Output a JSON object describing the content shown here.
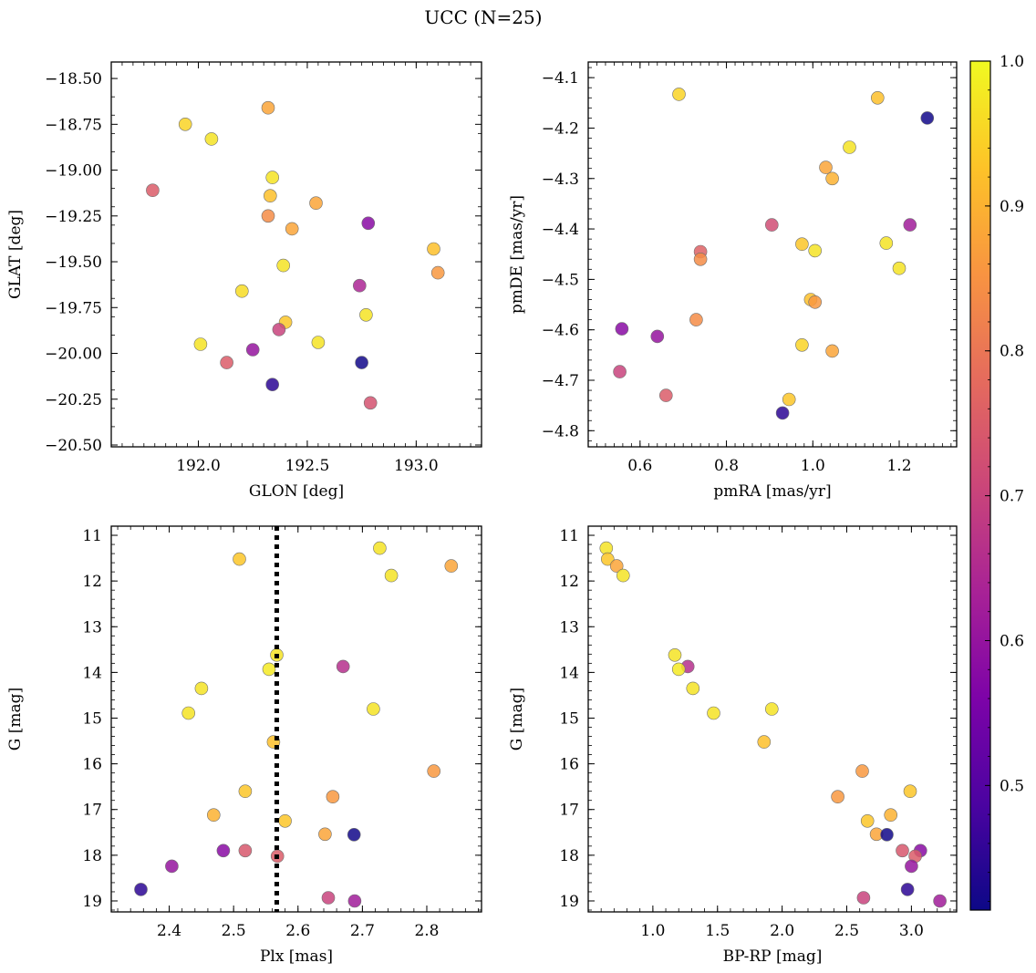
{
  "figure": {
    "title": "UCC (N=25)",
    "colorbar": {
      "colormap": "plasma",
      "range": [
        0.414,
        1.0
      ],
      "ticks": [
        "0.5",
        "0.6",
        "0.7",
        "0.8",
        "0.9",
        "1.0"
      ]
    }
  },
  "chart_data": [
    {
      "type": "scatter",
      "id": "glon-glat",
      "title": "",
      "xlabel": "GLON [deg]",
      "ylabel": "GLAT [deg]",
      "xlim": [
        191.6,
        193.3
      ],
      "ylim": [
        -20.51,
        -18.41
      ],
      "y_inverted": false,
      "xticks": [
        "192.0",
        "192.5",
        "193.0"
      ],
      "yticks": [
        "-18.50",
        "-18.75",
        "-19.00",
        "-19.25",
        "-19.50",
        "-19.75",
        "-20.00",
        "-20.25",
        "-20.50"
      ],
      "vline": null,
      "points": [
        {
          "x": 191.94,
          "y": -18.75,
          "c": 0.95
        },
        {
          "x": 192.06,
          "y": -18.83,
          "c": 0.97
        },
        {
          "x": 192.32,
          "y": -18.66,
          "c": 0.88
        },
        {
          "x": 191.79,
          "y": -19.11,
          "c": 0.75
        },
        {
          "x": 192.34,
          "y": -19.04,
          "c": 0.97
        },
        {
          "x": 192.33,
          "y": -19.14,
          "c": 0.92
        },
        {
          "x": 192.54,
          "y": -19.18,
          "c": 0.88
        },
        {
          "x": 192.32,
          "y": -19.25,
          "c": 0.84
        },
        {
          "x": 192.43,
          "y": -19.32,
          "c": 0.88
        },
        {
          "x": 192.78,
          "y": -19.29,
          "c": 0.58
        },
        {
          "x": 193.08,
          "y": -19.43,
          "c": 0.92
        },
        {
          "x": 193.1,
          "y": -19.56,
          "c": 0.86
        },
        {
          "x": 192.39,
          "y": -19.52,
          "c": 0.97
        },
        {
          "x": 192.2,
          "y": -19.66,
          "c": 0.96
        },
        {
          "x": 192.74,
          "y": -19.63,
          "c": 0.64
        },
        {
          "x": 192.4,
          "y": -19.83,
          "c": 0.93
        },
        {
          "x": 192.37,
          "y": -19.87,
          "c": 0.7
        },
        {
          "x": 192.77,
          "y": -19.79,
          "c": 0.97
        },
        {
          "x": 192.01,
          "y": -19.95,
          "c": 0.97
        },
        {
          "x": 192.25,
          "y": -19.98,
          "c": 0.6
        },
        {
          "x": 192.55,
          "y": -19.94,
          "c": 0.97
        },
        {
          "x": 192.13,
          "y": -20.05,
          "c": 0.75
        },
        {
          "x": 192.75,
          "y": -20.05,
          "c": 0.42
        },
        {
          "x": 192.34,
          "y": -20.17,
          "c": 0.45
        },
        {
          "x": 192.79,
          "y": -20.27,
          "c": 0.73
        }
      ]
    },
    {
      "type": "scatter",
      "id": "pmra-pmde",
      "title": "",
      "xlabel": "pmRA [mas/yr]",
      "ylabel": "pmDE [mas/yr]",
      "xlim": [
        0.48,
        1.333
      ],
      "ylim": [
        -4.832,
        -4.069
      ],
      "y_inverted": false,
      "xticks": [
        "0.6",
        "0.8",
        "1.0",
        "1.2"
      ],
      "yticks": [
        "-4.1",
        "-4.2",
        "-4.3",
        "-4.4",
        "-4.5",
        "-4.6",
        "-4.7",
        "-4.8"
      ],
      "vline": null,
      "points": [
        {
          "x": 0.69,
          "y": -4.133,
          "c": 0.95
        },
        {
          "x": 1.15,
          "y": -4.14,
          "c": 0.92
        },
        {
          "x": 1.265,
          "y": -4.18,
          "c": 0.42
        },
        {
          "x": 1.085,
          "y": -4.238,
          "c": 0.97
        },
        {
          "x": 1.03,
          "y": -4.278,
          "c": 0.88
        },
        {
          "x": 1.045,
          "y": -4.3,
          "c": 0.9
        },
        {
          "x": 0.905,
          "y": -4.392,
          "c": 0.72
        },
        {
          "x": 1.225,
          "y": -4.392,
          "c": 0.62
        },
        {
          "x": 0.975,
          "y": -4.43,
          "c": 0.93
        },
        {
          "x": 1.005,
          "y": -4.443,
          "c": 0.97
        },
        {
          "x": 1.17,
          "y": -4.428,
          "c": 0.97
        },
        {
          "x": 0.74,
          "y": -4.445,
          "c": 0.76
        },
        {
          "x": 0.74,
          "y": -4.46,
          "c": 0.84
        },
        {
          "x": 1.2,
          "y": -4.478,
          "c": 0.97
        },
        {
          "x": 0.995,
          "y": -4.54,
          "c": 0.92
        },
        {
          "x": 1.005,
          "y": -4.545,
          "c": 0.86
        },
        {
          "x": 0.73,
          "y": -4.58,
          "c": 0.84
        },
        {
          "x": 0.558,
          "y": -4.598,
          "c": 0.58
        },
        {
          "x": 0.64,
          "y": -4.613,
          "c": 0.6
        },
        {
          "x": 0.975,
          "y": -4.63,
          "c": 0.95
        },
        {
          "x": 1.045,
          "y": -4.642,
          "c": 0.88
        },
        {
          "x": 0.553,
          "y": -4.683,
          "c": 0.7
        },
        {
          "x": 0.66,
          "y": -4.73,
          "c": 0.75
        },
        {
          "x": 0.945,
          "y": -4.738,
          "c": 0.93
        },
        {
          "x": 0.93,
          "y": -4.765,
          "c": 0.45
        }
      ]
    },
    {
      "type": "scatter",
      "id": "plx-g",
      "title": "",
      "xlabel": "Plx [mas]",
      "ylabel": "G [mag]",
      "xlim": [
        2.31,
        2.885
      ],
      "ylim": [
        10.8,
        19.24
      ],
      "y_inverted": true,
      "xticks": [
        "2.4",
        "2.5",
        "2.6",
        "2.7",
        "2.8"
      ],
      "yticks": [
        "11",
        "12",
        "13",
        "14",
        "15",
        "16",
        "17",
        "18",
        "19"
      ],
      "vline": {
        "x": 2.567,
        "style": "dotted"
      },
      "points": [
        {
          "x": 2.727,
          "y": 11.28,
          "c": 0.97
        },
        {
          "x": 2.509,
          "y": 11.52,
          "c": 0.93
        },
        {
          "x": 2.838,
          "y": 11.67,
          "c": 0.88
        },
        {
          "x": 2.745,
          "y": 11.88,
          "c": 0.97
        },
        {
          "x": 2.567,
          "y": 13.62,
          "c": 0.97
        },
        {
          "x": 2.67,
          "y": 13.87,
          "c": 0.66
        },
        {
          "x": 2.555,
          "y": 13.93,
          "c": 0.98
        },
        {
          "x": 2.45,
          "y": 14.35,
          "c": 0.97
        },
        {
          "x": 2.717,
          "y": 14.8,
          "c": 0.97
        },
        {
          "x": 2.43,
          "y": 14.89,
          "c": 0.97
        },
        {
          "x": 2.562,
          "y": 15.52,
          "c": 0.92
        },
        {
          "x": 2.811,
          "y": 16.16,
          "c": 0.86
        },
        {
          "x": 2.518,
          "y": 16.6,
          "c": 0.93
        },
        {
          "x": 2.654,
          "y": 16.72,
          "c": 0.86
        },
        {
          "x": 2.469,
          "y": 17.12,
          "c": 0.9
        },
        {
          "x": 2.58,
          "y": 17.25,
          "c": 0.93
        },
        {
          "x": 2.642,
          "y": 17.54,
          "c": 0.88
        },
        {
          "x": 2.687,
          "y": 17.55,
          "c": 0.42
        },
        {
          "x": 2.484,
          "y": 17.9,
          "c": 0.58
        },
        {
          "x": 2.518,
          "y": 17.9,
          "c": 0.74
        },
        {
          "x": 2.568,
          "y": 18.02,
          "c": 0.75
        },
        {
          "x": 2.404,
          "y": 18.24,
          "c": 0.6
        },
        {
          "x": 2.356,
          "y": 18.75,
          "c": 0.45
        },
        {
          "x": 2.647,
          "y": 18.93,
          "c": 0.7
        },
        {
          "x": 2.688,
          "y": 19.0,
          "c": 0.62
        }
      ]
    },
    {
      "type": "scatter",
      "id": "bprp-g",
      "title": "",
      "xlabel": "BP-RP [mag]",
      "ylabel": "G [mag]",
      "xlim": [
        0.5,
        3.35
      ],
      "ylim": [
        10.8,
        19.24
      ],
      "y_inverted": true,
      "xticks": [
        "1.0",
        "1.5",
        "2.0",
        "2.5",
        "3.0"
      ],
      "yticks": [
        "11",
        "12",
        "13",
        "14",
        "15",
        "16",
        "17",
        "18",
        "19"
      ],
      "vline": null,
      "points": [
        {
          "x": 0.64,
          "y": 11.28,
          "c": 0.97
        },
        {
          "x": 0.65,
          "y": 11.52,
          "c": 0.93
        },
        {
          "x": 0.72,
          "y": 11.67,
          "c": 0.88
        },
        {
          "x": 0.77,
          "y": 11.88,
          "c": 0.97
        },
        {
          "x": 1.17,
          "y": 13.62,
          "c": 0.97
        },
        {
          "x": 1.27,
          "y": 13.87,
          "c": 0.66
        },
        {
          "x": 1.2,
          "y": 13.93,
          "c": 0.98
        },
        {
          "x": 1.31,
          "y": 14.35,
          "c": 0.97
        },
        {
          "x": 1.92,
          "y": 14.8,
          "c": 0.97
        },
        {
          "x": 1.47,
          "y": 14.89,
          "c": 0.97
        },
        {
          "x": 1.86,
          "y": 15.52,
          "c": 0.92
        },
        {
          "x": 2.62,
          "y": 16.16,
          "c": 0.86
        },
        {
          "x": 2.99,
          "y": 16.6,
          "c": 0.93
        },
        {
          "x": 2.43,
          "y": 16.72,
          "c": 0.86
        },
        {
          "x": 2.84,
          "y": 17.12,
          "c": 0.9
        },
        {
          "x": 2.66,
          "y": 17.25,
          "c": 0.93
        },
        {
          "x": 2.73,
          "y": 17.54,
          "c": 0.88
        },
        {
          "x": 2.81,
          "y": 17.55,
          "c": 0.42
        },
        {
          "x": 3.07,
          "y": 17.9,
          "c": 0.58
        },
        {
          "x": 2.93,
          "y": 17.9,
          "c": 0.74
        },
        {
          "x": 3.03,
          "y": 18.02,
          "c": 0.75
        },
        {
          "x": 3.0,
          "y": 18.24,
          "c": 0.6
        },
        {
          "x": 2.97,
          "y": 18.75,
          "c": 0.45
        },
        {
          "x": 2.63,
          "y": 18.93,
          "c": 0.7
        },
        {
          "x": 3.22,
          "y": 19.0,
          "c": 0.62
        }
      ]
    }
  ]
}
